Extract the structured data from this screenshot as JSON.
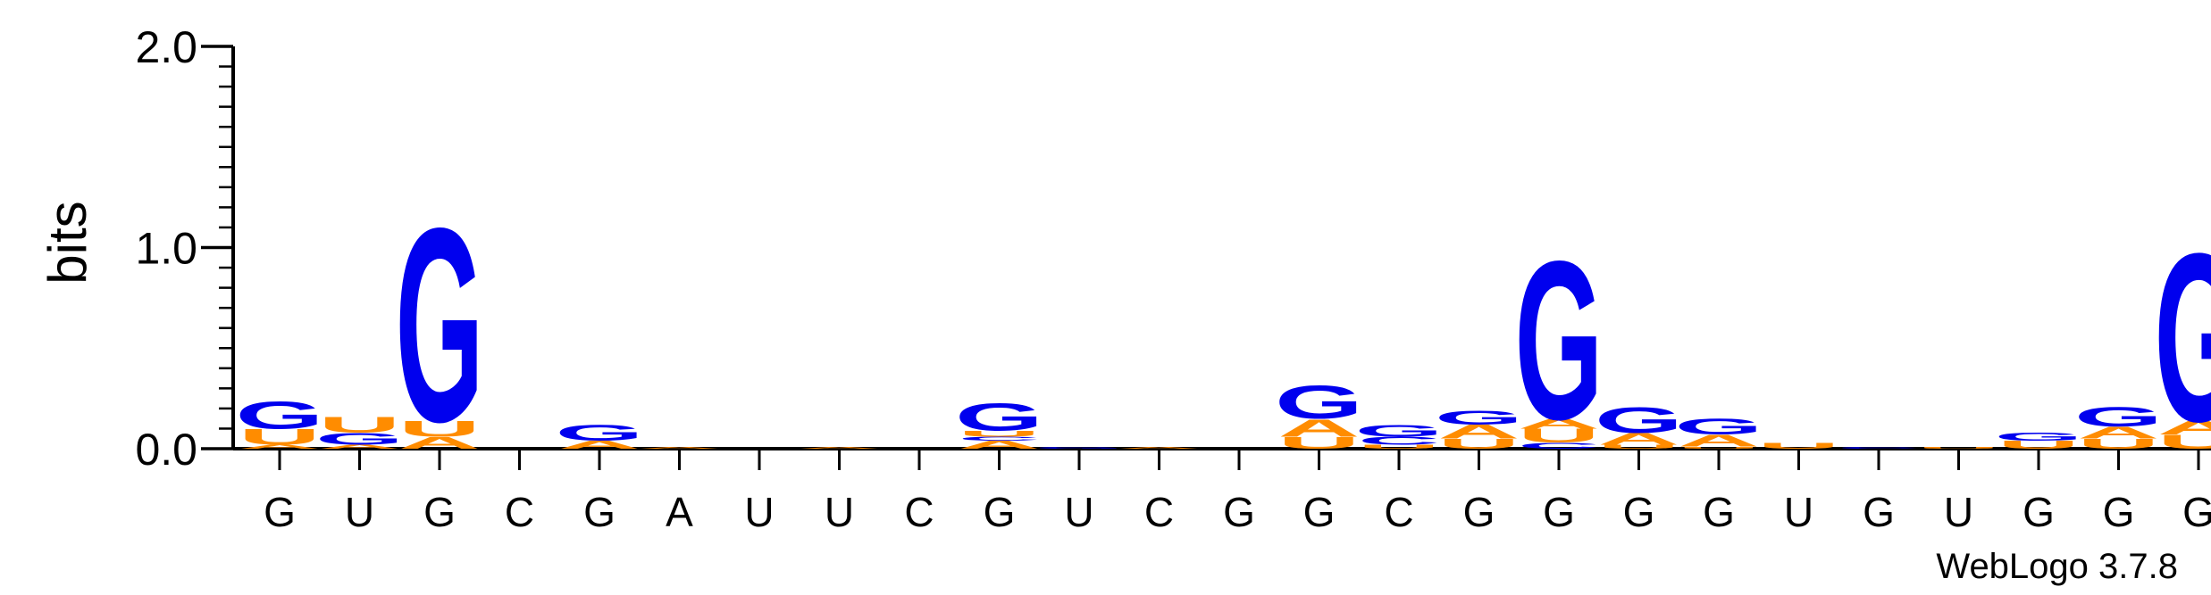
{
  "chart_data": {
    "type": "sequence-logo",
    "ylabel": "bits",
    "ylim": [
      0,
      2.0
    ],
    "yticks": [
      "0.0",
      "1.0",
      "2.0"
    ],
    "credit": "WebLogo 3.7.8",
    "colors": {
      "G": "#0000ee",
      "U": "#ff8c00",
      "A": "#ff8c00",
      "C": "#0000ee"
    },
    "positions": [
      {
        "label": "G",
        "stack": [
          {
            "letter": "A",
            "bits": 0.02
          },
          {
            "letter": "U",
            "bits": 0.08
          },
          {
            "letter": "G",
            "bits": 0.14
          }
        ]
      },
      {
        "label": "U",
        "stack": [
          {
            "letter": "A",
            "bits": 0.02
          },
          {
            "letter": "G",
            "bits": 0.06
          },
          {
            "letter": "U",
            "bits": 0.08
          }
        ]
      },
      {
        "label": "G",
        "stack": [
          {
            "letter": "A",
            "bits": 0.06
          },
          {
            "letter": "U",
            "bits": 0.08
          },
          {
            "letter": "G",
            "bits": 0.99
          }
        ]
      },
      {
        "label": "C",
        "stack": []
      },
      {
        "label": "G",
        "stack": [
          {
            "letter": "A",
            "bits": 0.04
          },
          {
            "letter": "G",
            "bits": 0.08
          }
        ]
      },
      {
        "label": "A",
        "stack": [
          {
            "letter": "A",
            "bits": 0.01
          }
        ]
      },
      {
        "label": "U",
        "stack": []
      },
      {
        "label": "U",
        "stack": [
          {
            "letter": "A",
            "bits": 0.01
          }
        ]
      },
      {
        "label": "C",
        "stack": []
      },
      {
        "label": "G",
        "stack": [
          {
            "letter": "A",
            "bits": 0.04
          },
          {
            "letter": "C",
            "bits": 0.02
          },
          {
            "letter": "U",
            "bits": 0.03
          },
          {
            "letter": "G",
            "bits": 0.14
          }
        ]
      },
      {
        "label": "U",
        "stack": [
          {
            "letter": "G",
            "bits": 0.01
          }
        ]
      },
      {
        "label": "C",
        "stack": [
          {
            "letter": "A",
            "bits": 0.01
          }
        ]
      },
      {
        "label": "G",
        "stack": []
      },
      {
        "label": "G",
        "stack": [
          {
            "letter": "U",
            "bits": 0.06
          },
          {
            "letter": "A",
            "bits": 0.09
          },
          {
            "letter": "G",
            "bits": 0.17
          }
        ]
      },
      {
        "label": "C",
        "stack": [
          {
            "letter": "U",
            "bits": 0.02
          },
          {
            "letter": "C",
            "bits": 0.04
          },
          {
            "letter": "G",
            "bits": 0.06
          }
        ]
      },
      {
        "label": "G",
        "stack": [
          {
            "letter": "U",
            "bits": 0.05
          },
          {
            "letter": "A",
            "bits": 0.07
          },
          {
            "letter": "G",
            "bits": 0.07
          }
        ]
      },
      {
        "label": "G",
        "stack": [
          {
            "letter": "C",
            "bits": 0.03
          },
          {
            "letter": "U",
            "bits": 0.07
          },
          {
            "letter": "A",
            "bits": 0.05
          },
          {
            "letter": "G",
            "bits": 0.81
          }
        ]
      },
      {
        "label": "G",
        "stack": [
          {
            "letter": "U",
            "bits": 0.02
          },
          {
            "letter": "A",
            "bits": 0.06
          },
          {
            "letter": "G",
            "bits": 0.13
          }
        ]
      },
      {
        "label": "G",
        "stack": [
          {
            "letter": "U",
            "bits": 0.01
          },
          {
            "letter": "A",
            "bits": 0.06
          },
          {
            "letter": "G",
            "bits": 0.08
          }
        ]
      },
      {
        "label": "U",
        "stack": [
          {
            "letter": "U",
            "bits": 0.03
          }
        ]
      },
      {
        "label": "G",
        "stack": [
          {
            "letter": "C",
            "bits": 0.01
          }
        ]
      },
      {
        "label": "U",
        "stack": [
          {
            "letter": "U",
            "bits": 0.01
          }
        ]
      },
      {
        "label": "G",
        "stack": [
          {
            "letter": "U",
            "bits": 0.04
          },
          {
            "letter": "G",
            "bits": 0.04
          }
        ]
      },
      {
        "label": "G",
        "stack": [
          {
            "letter": "U",
            "bits": 0.05
          },
          {
            "letter": "A",
            "bits": 0.06
          },
          {
            "letter": "G",
            "bits": 0.1
          }
        ]
      },
      {
        "label": "G",
        "stack": [
          {
            "letter": "U",
            "bits": 0.07
          },
          {
            "letter": "A",
            "bits": 0.07
          },
          {
            "letter": "G",
            "bits": 0.86
          }
        ]
      }
    ]
  }
}
